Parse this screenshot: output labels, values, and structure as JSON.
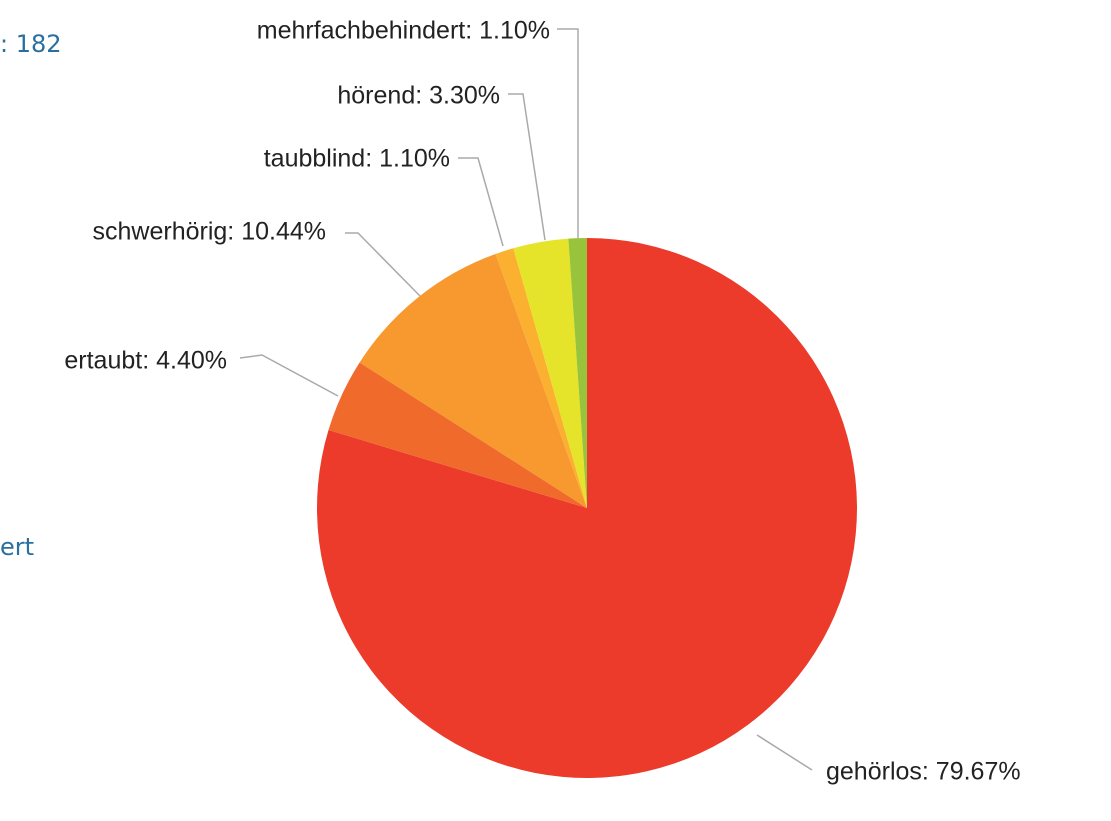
{
  "chart_data": {
    "type": "pie",
    "fragments": [
      ": 182",
      "ert"
    ],
    "categories": [
      "gehörlos",
      "ertaubt",
      "schwerhörig",
      "taubblind",
      "hörend",
      "mehrfachbehindert"
    ],
    "values": [
      79.67,
      4.4,
      10.44,
      1.1,
      3.3,
      1.1
    ],
    "value_labels": [
      "gehörlos: 79.67%",
      "ertaubt: 4.40%",
      "schwerhörig: 10.44%",
      "taubblind: 1.10%",
      "hörend: 3.30%",
      "mehrfachbehindert: 1.10%"
    ],
    "colors": [
      "#ec3a2b",
      "#f06a2c",
      "#f7992f",
      "#fbb12f",
      "#e6e42a",
      "#97c43b"
    ]
  }
}
